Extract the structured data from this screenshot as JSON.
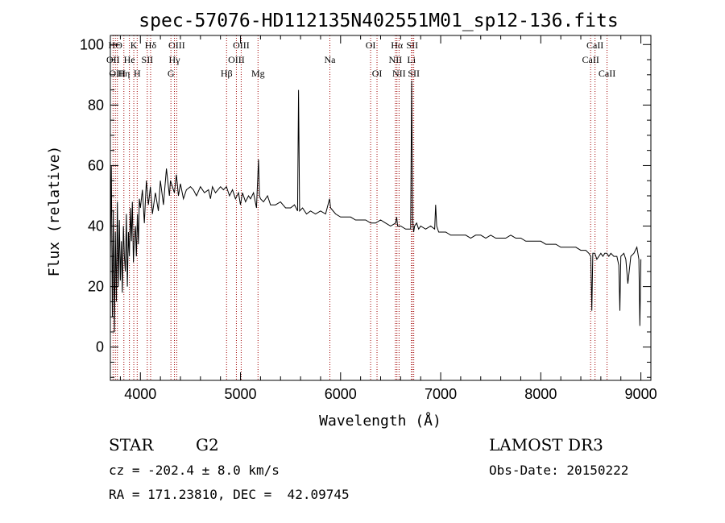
{
  "chart_data": {
    "type": "line",
    "title": "spec-57076-HD112135N402551M01_sp12-136.fits",
    "xlabel": "Wavelength (Å)",
    "ylabel": "Flux (relative)",
    "xlim": [
      3700,
      9100
    ],
    "ylim": [
      -11,
      103
    ],
    "x_ticks": [
      4000,
      5000,
      6000,
      7000,
      8000,
      9000
    ],
    "y_ticks": [
      0,
      20,
      40,
      60,
      80,
      100
    ],
    "grid": false,
    "series": [
      {
        "name": "flux",
        "x": [
          3700,
          3710,
          3720,
          3730,
          3740,
          3750,
          3760,
          3770,
          3780,
          3790,
          3800,
          3810,
          3820,
          3830,
          3840,
          3850,
          3860,
          3870,
          3880,
          3890,
          3900,
          3910,
          3920,
          3930,
          3940,
          3950,
          3960,
          3970,
          3980,
          3990,
          4000,
          4020,
          4040,
          4060,
          4080,
          4100,
          4120,
          4150,
          4180,
          4200,
          4230,
          4260,
          4290,
          4300,
          4320,
          4340,
          4360,
          4380,
          4400,
          4430,
          4460,
          4500,
          4530,
          4560,
          4600,
          4640,
          4680,
          4700,
          4720,
          4750,
          4800,
          4830,
          4860,
          4890,
          4920,
          4950,
          4980,
          5000,
          5020,
          5050,
          5080,
          5100,
          5130,
          5160,
          5180,
          5190,
          5200,
          5230,
          5270,
          5300,
          5350,
          5400,
          5450,
          5500,
          5540,
          5570,
          5580,
          5590,
          5620,
          5660,
          5700,
          5750,
          5800,
          5850,
          5890,
          5900,
          5950,
          6000,
          6050,
          6100,
          6150,
          6200,
          6250,
          6300,
          6350,
          6400,
          6450,
          6500,
          6550,
          6560,
          6570,
          6600,
          6650,
          6700,
          6710,
          6720,
          6730,
          6740,
          6760,
          6780,
          6800,
          6850,
          6900,
          6940,
          6950,
          6960,
          6980,
          7000,
          7050,
          7100,
          7150,
          7200,
          7250,
          7300,
          7350,
          7400,
          7450,
          7500,
          7550,
          7600,
          7650,
          7700,
          7750,
          7800,
          7850,
          7900,
          7950,
          8000,
          8050,
          8100,
          8150,
          8200,
          8250,
          8300,
          8350,
          8400,
          8450,
          8480,
          8500,
          8510,
          8520,
          8540,
          8560,
          8600,
          8620,
          8640,
          8660,
          8680,
          8700,
          8730,
          8760,
          8780,
          8790,
          8800,
          8830,
          8850,
          8870,
          8900,
          8930,
          8960,
          8980,
          8990,
          9000
        ],
        "y": [
          28,
          60,
          10,
          45,
          5,
          38,
          15,
          48,
          20,
          42,
          22,
          35,
          18,
          40,
          30,
          25,
          44,
          20,
          38,
          30,
          46,
          35,
          48,
          28,
          36,
          40,
          30,
          44,
          34,
          49,
          46,
          52,
          41,
          55,
          47,
          53,
          44,
          51,
          45,
          55,
          47,
          59,
          50,
          55,
          53,
          51,
          57,
          50,
          54,
          49,
          52,
          53,
          52,
          50,
          53,
          51,
          52,
          49,
          53,
          51,
          53,
          52,
          53,
          50,
          52,
          49,
          51,
          47,
          51,
          48,
          50,
          49,
          51,
          46,
          62,
          50,
          49,
          48,
          50,
          47,
          47,
          48,
          46,
          46,
          47,
          45,
          85,
          45,
          46,
          44,
          45,
          44,
          45,
          44,
          49,
          46,
          44,
          43,
          43,
          43,
          42,
          42,
          42,
          41,
          41,
          42,
          41,
          40,
          41,
          43,
          40,
          40,
          39,
          39,
          88,
          42,
          38,
          40,
          41,
          39,
          40,
          39,
          40,
          39,
          47,
          40,
          38,
          38,
          38,
          37,
          37,
          37,
          37,
          36,
          37,
          37,
          36,
          37,
          36,
          36,
          36,
          37,
          36,
          36,
          35,
          35,
          35,
          35,
          34,
          34,
          34,
          33,
          33,
          33,
          33,
          32,
          32,
          31,
          30,
          12,
          31,
          31,
          29,
          31,
          30,
          31,
          31,
          30,
          31,
          30,
          30,
          27,
          12,
          30,
          31,
          29,
          21,
          30,
          31,
          33,
          29,
          7,
          29
        ]
      }
    ],
    "line_markers": [
      {
        "label": "HΘ",
        "wavelength": 3750,
        "row": 1
      },
      {
        "label": "OII",
        "wavelength": 3727,
        "row": 2
      },
      {
        "label": "OIII",
        "wavelength": 3770,
        "row": 3
      },
      {
        "label": "K",
        "wavelength": 3934,
        "row": 1
      },
      {
        "label": "He",
        "wavelength": 3890,
        "row": 2
      },
      {
        "label": "Hη",
        "wavelength": 3835,
        "row": 3
      },
      {
        "label": "SII",
        "wavelength": 4069,
        "row": 2
      },
      {
        "label": "H",
        "wavelength": 3968,
        "row": 3
      },
      {
        "label": "Hδ",
        "wavelength": 4102,
        "row": 1
      },
      {
        "label": "OIII",
        "wavelength": 4363,
        "row": 1
      },
      {
        "label": "Hγ",
        "wavelength": 4340,
        "row": 2
      },
      {
        "label": "G",
        "wavelength": 4305,
        "row": 3
      },
      {
        "label": "OIII",
        "wavelength": 5007,
        "row": 1
      },
      {
        "label": "OIII",
        "wavelength": 4959,
        "row": 2
      },
      {
        "label": "Hβ",
        "wavelength": 4861,
        "row": 3
      },
      {
        "label": "Mg",
        "wavelength": 5175,
        "row": 3
      },
      {
        "label": "Na",
        "wavelength": 5893,
        "row": 2
      },
      {
        "label": "OI",
        "wavelength": 6300,
        "row": 1
      },
      {
        "label": "OI",
        "wavelength": 6364,
        "row": 3
      },
      {
        "label": "Hα",
        "wavelength": 6563,
        "row": 1
      },
      {
        "label": "NII",
        "wavelength": 6548,
        "row": 2
      },
      {
        "label": "NII",
        "wavelength": 6584,
        "row": 3
      },
      {
        "label": "SII",
        "wavelength": 6716,
        "row": 1
      },
      {
        "label": "Li",
        "wavelength": 6708,
        "row": 2
      },
      {
        "label": "SII",
        "wavelength": 6731,
        "row": 3
      },
      {
        "label": "CaII",
        "wavelength": 8542,
        "row": 1
      },
      {
        "label": "CaII",
        "wavelength": 8498,
        "row": 2
      },
      {
        "label": "CaII",
        "wavelength": 8662,
        "row": 3
      }
    ]
  },
  "info": {
    "object_class": "STAR",
    "subclass": "G2",
    "survey": "LAMOST DR3",
    "cz": "cz = -202.4 ± 8.0 km/s",
    "obs_date": "Obs-Date: 20150222",
    "coords": "RA = 171.23810, DEC =  42.09745"
  }
}
